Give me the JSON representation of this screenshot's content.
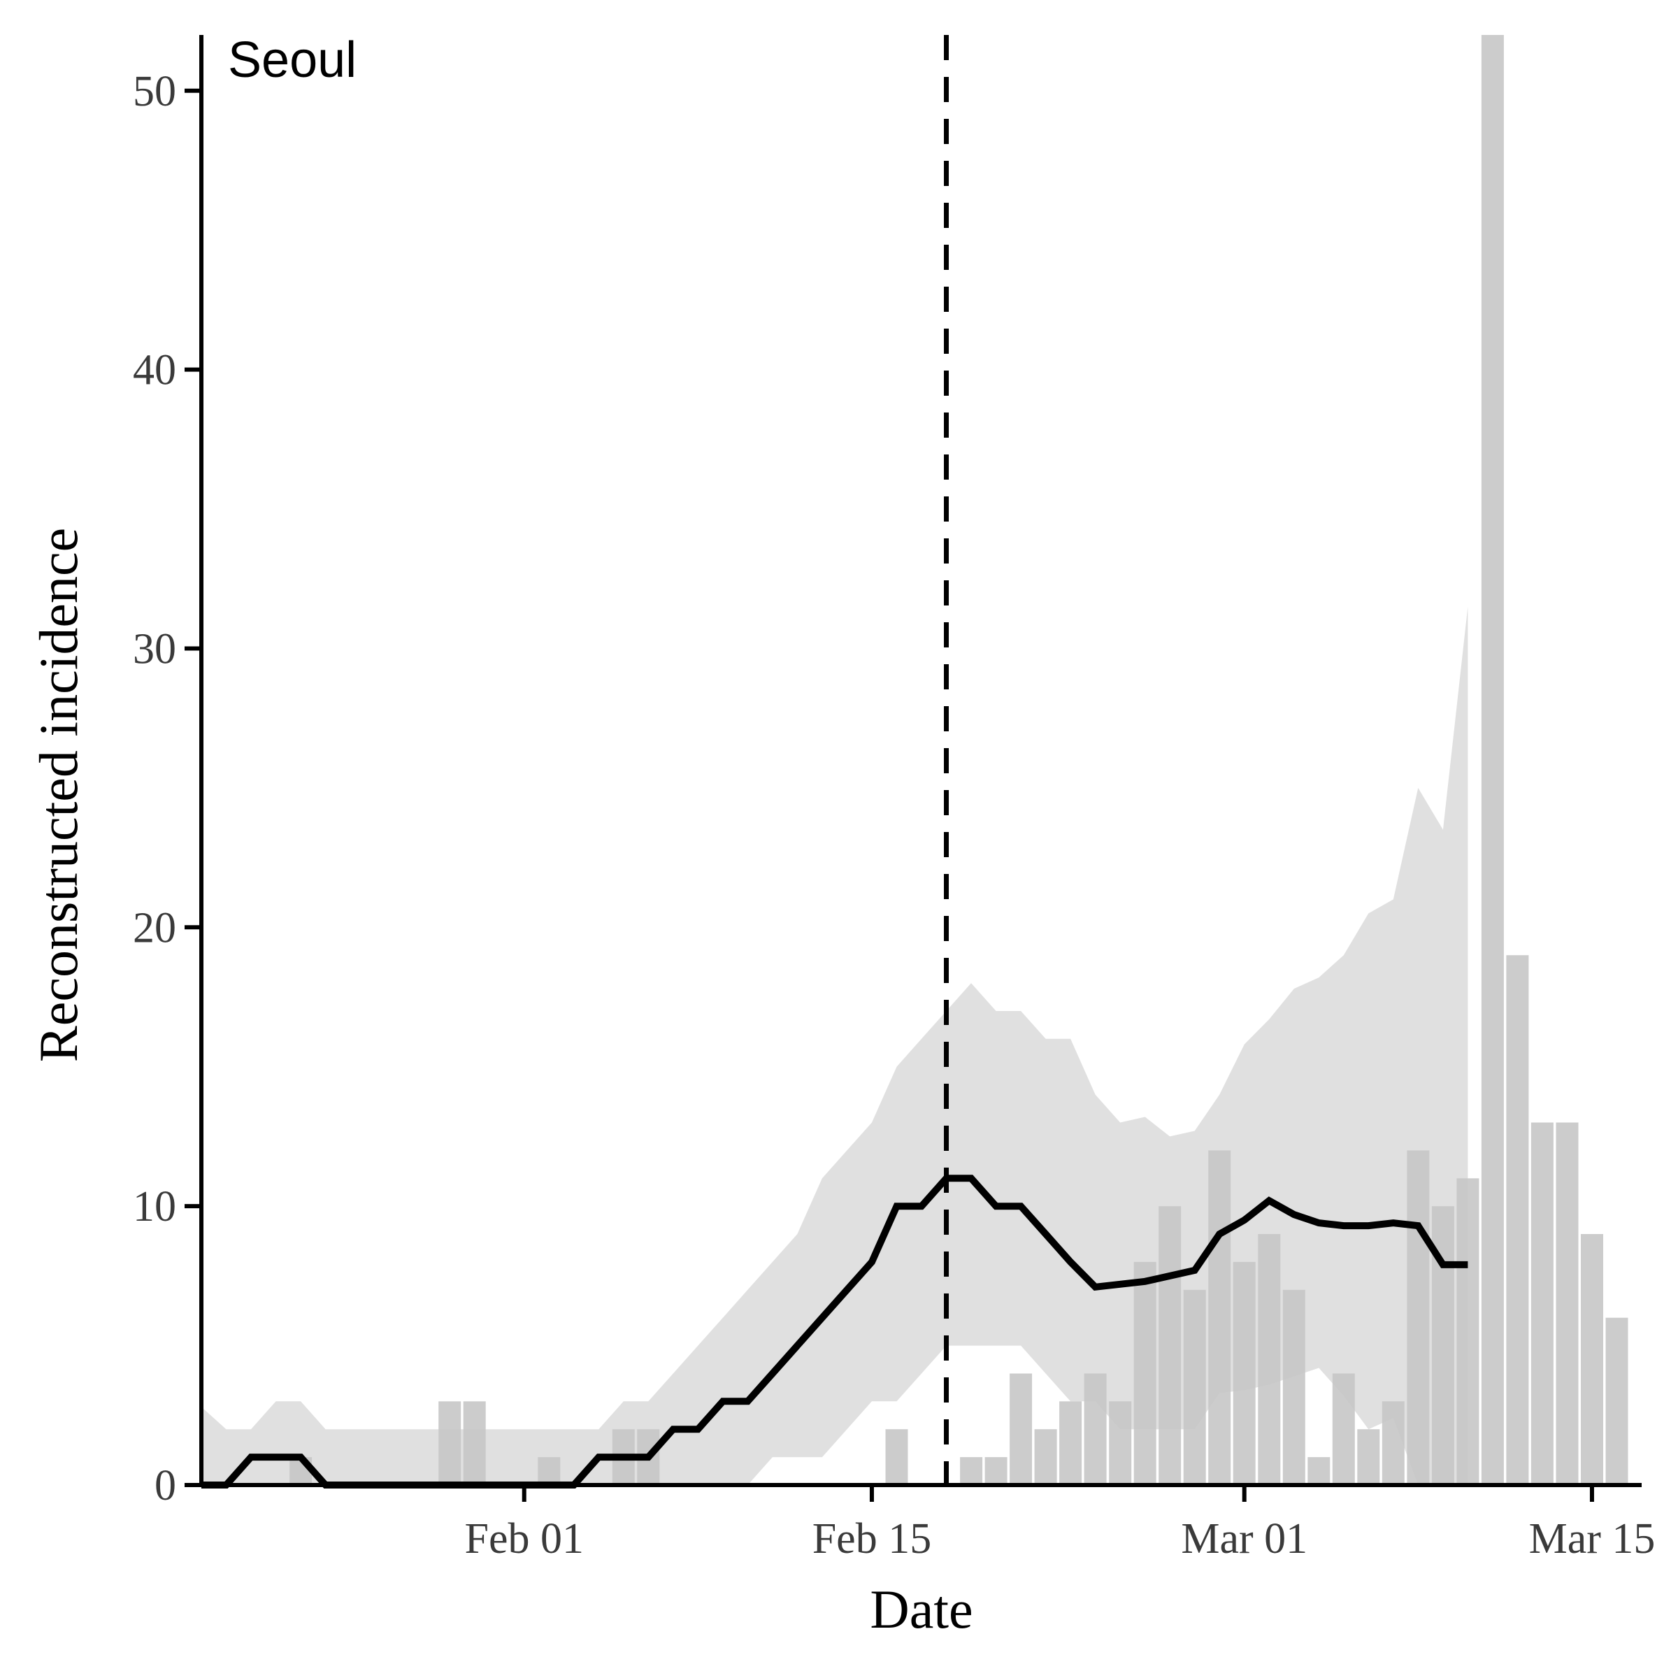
{
  "chart_data": {
    "type": "bar",
    "panel_label": "Seoul",
    "xlabel": "Date",
    "ylabel": "Reconstructed incidence",
    "x_is_date": true,
    "xlim": [
      "2020-01-19",
      "2020-03-17"
    ],
    "ylim": [
      0,
      52
    ],
    "x_ticks": [
      {
        "date": "2020-02-01",
        "label": "Feb 01"
      },
      {
        "date": "2020-02-15",
        "label": "Feb 15"
      },
      {
        "date": "2020-03-01",
        "label": "Mar 01"
      },
      {
        "date": "2020-03-15",
        "label": "Mar 15"
      }
    ],
    "y_ticks": [
      0,
      10,
      20,
      30,
      40,
      50
    ],
    "reference_line": {
      "date": "2020-02-18",
      "style": "dashed"
    },
    "grid": false,
    "colors": {
      "bars": "#c6c6c6",
      "ribbon": "#dedede",
      "line": "#000000",
      "axis": "#000000"
    },
    "series": [
      {
        "kind": "bars",
        "points": [
          {
            "date": "2020-01-23",
            "value": 1
          },
          {
            "date": "2020-01-29",
            "value": 3
          },
          {
            "date": "2020-01-30",
            "value": 3
          },
          {
            "date": "2020-02-02",
            "value": 1
          },
          {
            "date": "2020-02-05",
            "value": 2
          },
          {
            "date": "2020-02-06",
            "value": 2
          },
          {
            "date": "2020-02-16",
            "value": 2
          },
          {
            "date": "2020-02-19",
            "value": 1
          },
          {
            "date": "2020-02-20",
            "value": 1
          },
          {
            "date": "2020-02-21",
            "value": 4
          },
          {
            "date": "2020-02-22",
            "value": 2
          },
          {
            "date": "2020-02-23",
            "value": 3
          },
          {
            "date": "2020-02-24",
            "value": 4
          },
          {
            "date": "2020-02-25",
            "value": 3
          },
          {
            "date": "2020-02-26",
            "value": 8
          },
          {
            "date": "2020-02-27",
            "value": 10
          },
          {
            "date": "2020-02-28",
            "value": 7
          },
          {
            "date": "2020-02-29",
            "value": 12
          },
          {
            "date": "2020-03-01",
            "value": 8
          },
          {
            "date": "2020-03-02",
            "value": 9
          },
          {
            "date": "2020-03-03",
            "value": 7
          },
          {
            "date": "2020-03-04",
            "value": 1
          },
          {
            "date": "2020-03-05",
            "value": 4
          },
          {
            "date": "2020-03-06",
            "value": 2
          },
          {
            "date": "2020-03-07",
            "value": 3
          },
          {
            "date": "2020-03-08",
            "value": 12
          },
          {
            "date": "2020-03-09",
            "value": 10
          },
          {
            "date": "2020-03-10",
            "value": 11
          },
          {
            "date": "2020-03-11",
            "value": 52
          },
          {
            "date": "2020-03-12",
            "value": 19
          },
          {
            "date": "2020-03-13",
            "value": 13
          },
          {
            "date": "2020-03-14",
            "value": 13
          },
          {
            "date": "2020-03-15",
            "value": 9
          },
          {
            "date": "2020-03-16",
            "value": 6
          }
        ]
      },
      {
        "kind": "ribbon",
        "dates": [
          "2020-01-19",
          "2020-01-20",
          "2020-01-21",
          "2020-01-22",
          "2020-01-23",
          "2020-01-24",
          "2020-01-25",
          "2020-01-26",
          "2020-01-27",
          "2020-01-28",
          "2020-01-29",
          "2020-01-30",
          "2020-01-31",
          "2020-02-01",
          "2020-02-02",
          "2020-02-03",
          "2020-02-04",
          "2020-02-05",
          "2020-02-06",
          "2020-02-07",
          "2020-02-08",
          "2020-02-09",
          "2020-02-10",
          "2020-02-11",
          "2020-02-12",
          "2020-02-13",
          "2020-02-14",
          "2020-02-15",
          "2020-02-16",
          "2020-02-17",
          "2020-02-18",
          "2020-02-19",
          "2020-02-20",
          "2020-02-21",
          "2020-02-22",
          "2020-02-23",
          "2020-02-24",
          "2020-02-25",
          "2020-02-26",
          "2020-02-27",
          "2020-02-28",
          "2020-02-29",
          "2020-03-01",
          "2020-03-02",
          "2020-03-03",
          "2020-03-04",
          "2020-03-05",
          "2020-03-06",
          "2020-03-07",
          "2020-03-08",
          "2020-03-09",
          "2020-03-10"
        ],
        "lower": [
          0,
          0,
          0,
          0,
          0,
          0,
          0,
          0,
          0,
          0,
          0,
          0,
          0,
          0,
          0,
          0,
          0,
          0,
          0,
          0,
          0,
          0,
          0,
          1,
          1,
          1,
          2,
          3,
          3,
          4,
          5,
          5,
          5,
          5,
          4,
          3,
          3,
          2,
          2,
          2,
          2,
          3.3,
          3.4,
          3.6,
          3.9,
          4.2,
          3.2,
          2,
          2.4,
          0,
          0,
          0
        ],
        "upper": [
          2.8,
          2,
          2,
          3,
          3,
          2,
          2,
          2,
          2,
          2,
          2,
          2,
          2,
          2,
          2,
          2,
          2,
          3,
          3,
          4,
          5,
          6,
          7,
          8,
          9,
          11,
          12,
          13,
          15,
          16,
          17,
          18,
          17,
          17,
          16,
          16,
          14,
          13,
          13.2,
          12.5,
          12.7,
          14,
          15.8,
          16.7,
          17.8,
          18.2,
          19,
          20.5,
          21,
          25,
          23.5,
          31.5
        ]
      },
      {
        "kind": "line",
        "dates": [
          "2020-01-19",
          "2020-01-20",
          "2020-01-21",
          "2020-01-22",
          "2020-01-23",
          "2020-01-24",
          "2020-01-25",
          "2020-01-26",
          "2020-01-27",
          "2020-01-28",
          "2020-01-29",
          "2020-01-30",
          "2020-01-31",
          "2020-02-01",
          "2020-02-02",
          "2020-02-03",
          "2020-02-04",
          "2020-02-05",
          "2020-02-06",
          "2020-02-07",
          "2020-02-08",
          "2020-02-09",
          "2020-02-10",
          "2020-02-11",
          "2020-02-12",
          "2020-02-13",
          "2020-02-14",
          "2020-02-15",
          "2020-02-16",
          "2020-02-17",
          "2020-02-18",
          "2020-02-19",
          "2020-02-20",
          "2020-02-21",
          "2020-02-22",
          "2020-02-23",
          "2020-02-24",
          "2020-02-25",
          "2020-02-26",
          "2020-02-27",
          "2020-02-28",
          "2020-02-29",
          "2020-03-01",
          "2020-03-02",
          "2020-03-03",
          "2020-03-04",
          "2020-03-05",
          "2020-03-06",
          "2020-03-07",
          "2020-03-08",
          "2020-03-09",
          "2020-03-10"
        ],
        "values": [
          0,
          0,
          1,
          1,
          1,
          0,
          0,
          0,
          0,
          0,
          0,
          0,
          0,
          0,
          0,
          0,
          1,
          1,
          1,
          2,
          2,
          3,
          3,
          4,
          5,
          6,
          7,
          8,
          10,
          10,
          11,
          11,
          10,
          10,
          9,
          8,
          7.1,
          7.2,
          7.3,
          7.5,
          7.7,
          9,
          9.5,
          10.2,
          9.7,
          9.4,
          9.3,
          9.3,
          9.4,
          9.3,
          7.9,
          7.9
        ]
      }
    ]
  }
}
